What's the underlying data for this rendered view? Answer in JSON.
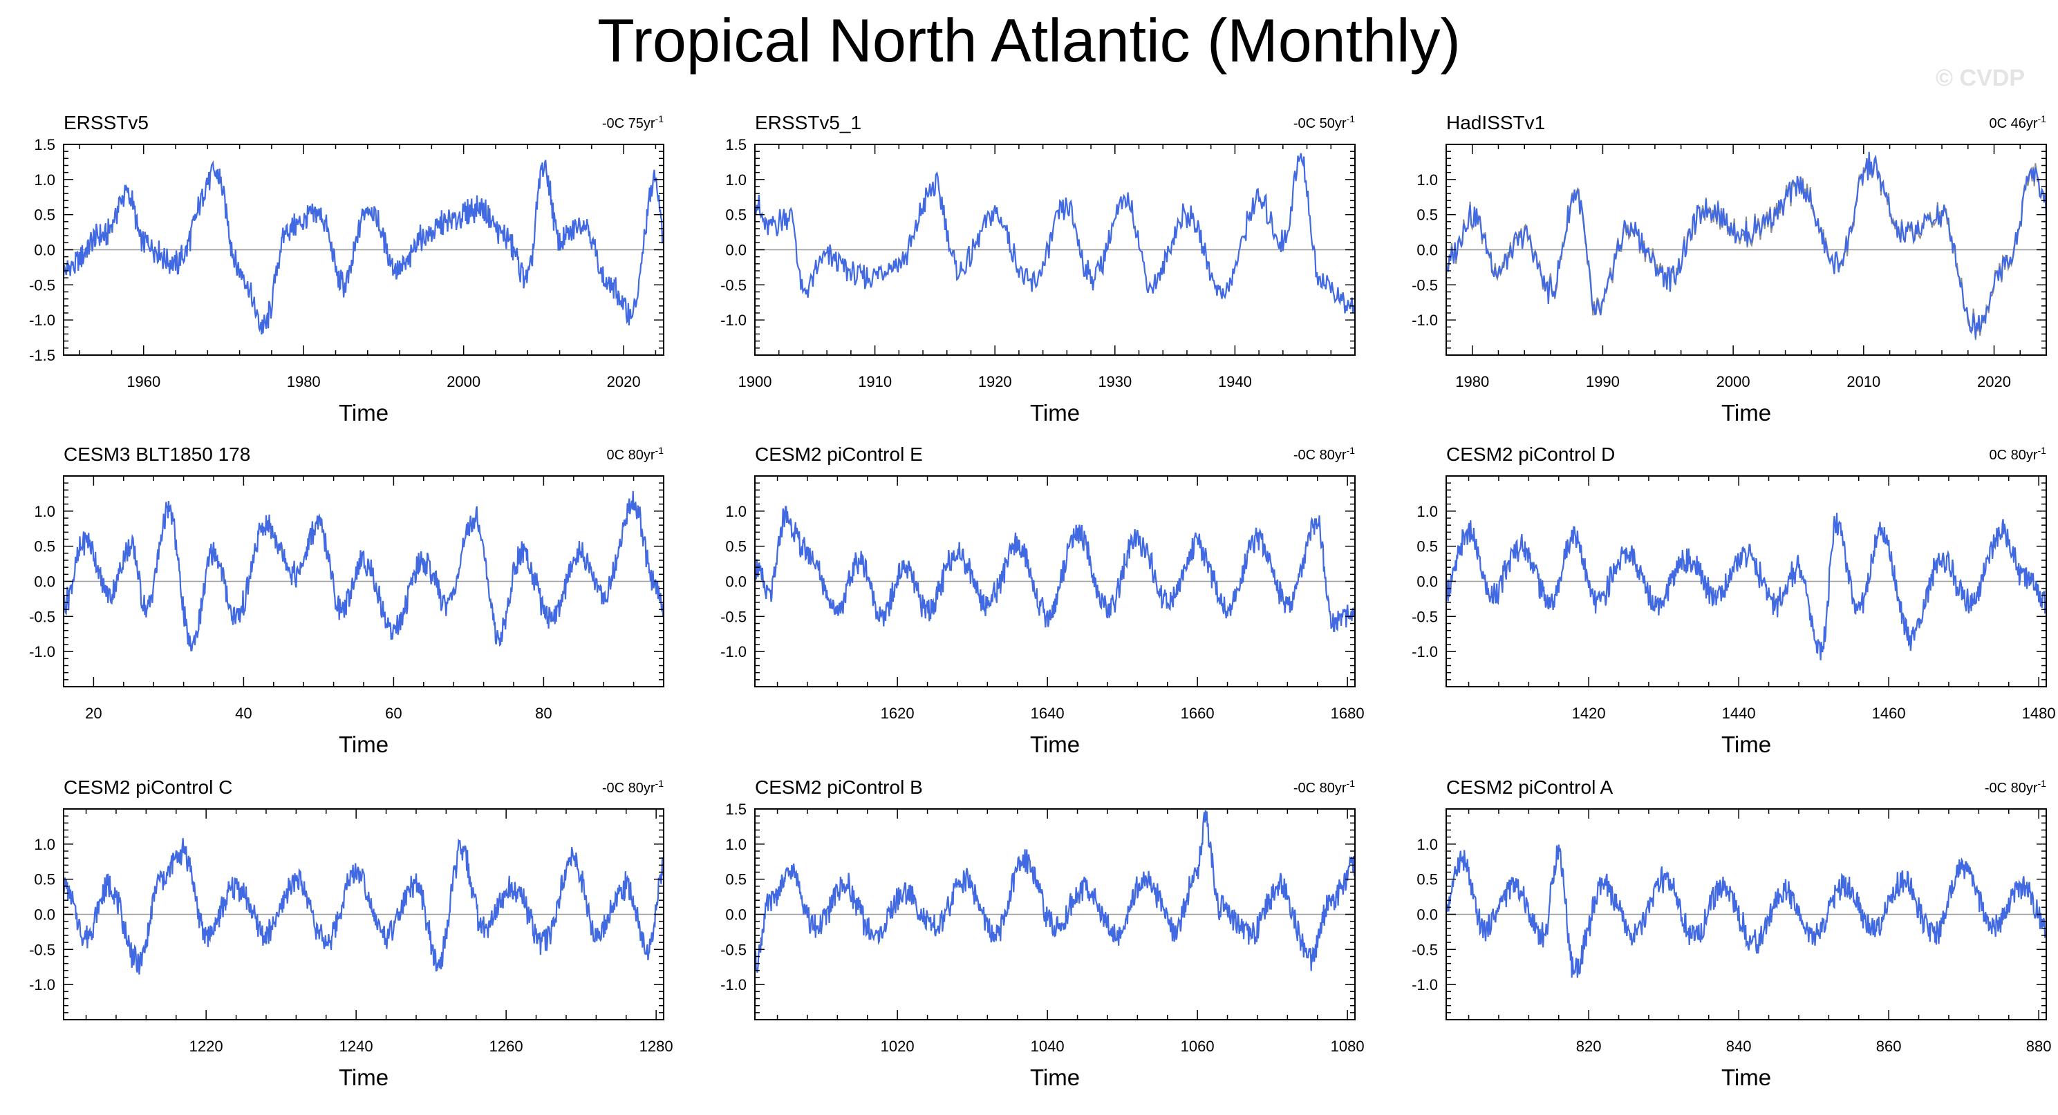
{
  "title": "Tropical North Atlantic (Monthly)",
  "watermark": "© CVDP",
  "colors": {
    "series": "#4169e1",
    "overlay": "#8c8c8c",
    "zero_line": "#9a9a9a"
  },
  "chart_data": [
    {
      "type": "line",
      "title": "ERSSTv5",
      "trend": "-0C 75yr",
      "trend_superscript": "-1",
      "xlabel": "Time",
      "xlim": [
        1950,
        2025
      ],
      "xticks": [
        1960,
        1980,
        2000,
        2020
      ],
      "ylim": [
        -1.5,
        1.5
      ],
      "yticks": [
        -1.5,
        -1.0,
        -0.5,
        0.0,
        0.5,
        1.0,
        1.5
      ],
      "x": [
        1950,
        1955,
        1958,
        1960,
        1964,
        1969,
        1972,
        1975,
        1978,
        1982,
        1985,
        1988,
        1992,
        1995,
        1998,
        2002,
        2005,
        2008,
        2010,
        2012,
        2015,
        2018,
        2021,
        2024,
        2025
      ],
      "y": [
        -0.3,
        0.2,
        0.8,
        0.1,
        -0.2,
        1.1,
        -0.3,
        -1.1,
        0.3,
        0.5,
        -0.5,
        0.6,
        -0.3,
        0.2,
        0.4,
        0.6,
        0.2,
        -0.4,
        1.2,
        0.1,
        0.4,
        -0.5,
        -0.9,
        1.0,
        0.2
      ]
    },
    {
      "type": "line",
      "title": "ERSSTv5_1",
      "trend": "-0C 50yr",
      "trend_superscript": "-1",
      "xlabel": "Time",
      "xlim": [
        1900,
        1950
      ],
      "xticks": [
        1900,
        1910,
        1920,
        1930,
        1940
      ],
      "ylim": [
        -1.5,
        1.5
      ],
      "yticks": [
        -1.0,
        -0.5,
        0.0,
        0.5,
        1.0,
        1.5
      ],
      "x": [
        1900,
        1901,
        1903,
        1904,
        1906,
        1909,
        1912,
        1915,
        1917,
        1920,
        1923,
        1926,
        1928,
        1931,
        1933,
        1936,
        1939,
        1942,
        1944,
        1945.5,
        1947,
        1949.5
      ],
      "y": [
        0.7,
        0.3,
        0.5,
        -0.6,
        -0.1,
        -0.4,
        -0.2,
        0.9,
        -0.3,
        0.5,
        -0.5,
        0.6,
        -0.4,
        0.7,
        -0.5,
        0.5,
        -0.6,
        0.7,
        0.1,
        1.3,
        -0.4,
        -0.8
      ]
    },
    {
      "type": "line",
      "title": "HadISSTv1",
      "trend": "0C 46yr",
      "trend_superscript": "-1",
      "xlabel": "Time",
      "xlim": [
        1978,
        2024
      ],
      "xticks": [
        1980,
        1990,
        2000,
        2010,
        2020
      ],
      "ylim": [
        -1.5,
        1.5
      ],
      "yticks": [
        -1.0,
        -0.5,
        0.0,
        0.5,
        1.0
      ],
      "x": [
        1978,
        1980,
        1982,
        1984,
        1986,
        1988,
        1989.5,
        1992,
        1995,
        1998,
        2001,
        2003,
        2005,
        2008,
        2010.5,
        2013,
        2016,
        2018.5,
        2021,
        2023,
        2024
      ],
      "y": [
        -0.2,
        0.5,
        -0.3,
        0.2,
        -0.6,
        0.8,
        -0.9,
        0.3,
        -0.4,
        0.6,
        0.2,
        0.5,
        0.9,
        -0.2,
        1.2,
        0.2,
        0.5,
        -1.1,
        -0.2,
        1.1,
        0.6
      ]
    },
    {
      "type": "line",
      "title": "CESM3 BLT1850 178",
      "trend": "0C 80yr",
      "trend_superscript": "-1",
      "xlabel": "Time",
      "xlim": [
        16,
        96
      ],
      "xticks": [
        20,
        40,
        60,
        80
      ],
      "ylim": [
        -1.5,
        1.5
      ],
      "yticks": [
        -1.0,
        -0.5,
        0.0,
        0.5,
        1.0
      ],
      "x": [
        16,
        19,
        22,
        25,
        27,
        30,
        33,
        36,
        39,
        43,
        47,
        50,
        53,
        56,
        60,
        64,
        67,
        71,
        74,
        77,
        81,
        85,
        88,
        92,
        95,
        96
      ],
      "y": [
        -0.3,
        0.6,
        -0.2,
        0.5,
        -0.4,
        1.0,
        -0.9,
        0.4,
        -0.5,
        0.8,
        0.1,
        0.8,
        -0.4,
        0.3,
        -0.7,
        0.3,
        -0.3,
        0.9,
        -0.8,
        0.4,
        -0.5,
        0.4,
        -0.2,
        1.1,
        -0.1,
        -0.4
      ]
    },
    {
      "type": "line",
      "title": "CESM2 piControl E",
      "trend": "-0C 80yr",
      "trend_superscript": "-1",
      "xlabel": "Time",
      "xlim": [
        1601,
        1681
      ],
      "xticks": [
        1620,
        1640,
        1660,
        1680
      ],
      "ylim": [
        -1.5,
        1.5
      ],
      "yticks": [
        -1.0,
        -0.5,
        0.0,
        0.5,
        1.0
      ],
      "x": [
        1601,
        1603,
        1605,
        1608,
        1612,
        1615,
        1618,
        1621,
        1624,
        1628,
        1632,
        1636,
        1640,
        1644,
        1648,
        1652,
        1656,
        1660,
        1664,
        1668,
        1672,
        1676,
        1678,
        1681
      ],
      "y": [
        0.2,
        -0.2,
        0.9,
        0.4,
        -0.4,
        0.3,
        -0.5,
        0.2,
        -0.4,
        0.4,
        -0.3,
        0.5,
        -0.5,
        0.7,
        -0.4,
        0.6,
        -0.3,
        0.5,
        -0.4,
        0.6,
        -0.3,
        0.8,
        -0.6,
        -0.4
      ]
    },
    {
      "type": "line",
      "title": "CESM2 piControl D",
      "trend": "0C 80yr",
      "trend_superscript": "-1",
      "xlabel": "Time",
      "xlim": [
        1401,
        1481
      ],
      "xticks": [
        1420,
        1440,
        1460,
        1480
      ],
      "ylim": [
        -1.5,
        1.5
      ],
      "yticks": [
        -1.0,
        -0.5,
        0.0,
        0.5,
        1.0
      ],
      "x": [
        1401,
        1404,
        1407,
        1411,
        1415,
        1418,
        1421,
        1425,
        1429,
        1433,
        1437,
        1441,
        1445,
        1448,
        1451,
        1453,
        1456,
        1459,
        1463,
        1467,
        1471,
        1475,
        1478,
        1481
      ],
      "y": [
        -0.1,
        0.7,
        -0.2,
        0.5,
        -0.3,
        0.7,
        -0.3,
        0.4,
        -0.3,
        0.3,
        -0.2,
        0.4,
        -0.3,
        0.2,
        -1.0,
        0.8,
        -0.4,
        0.7,
        -0.8,
        0.3,
        -0.3,
        0.7,
        0.1,
        -0.3
      ]
    },
    {
      "type": "line",
      "title": "CESM2 piControl C",
      "trend": "-0C 80yr",
      "trend_superscript": "-1",
      "xlabel": "Time",
      "xlim": [
        1201,
        1281
      ],
      "xticks": [
        1220,
        1240,
        1260,
        1280
      ],
      "ylim": [
        -1.5,
        1.5
      ],
      "yticks": [
        -1.0,
        -0.5,
        0.0,
        0.5,
        1.0
      ],
      "x": [
        1201,
        1204,
        1207,
        1211,
        1214,
        1217,
        1220,
        1224,
        1228,
        1232,
        1236,
        1240,
        1244,
        1248,
        1251,
        1254,
        1257,
        1261,
        1265,
        1269,
        1272,
        1276,
        1279,
        1281
      ],
      "y": [
        0.4,
        -0.3,
        0.4,
        -0.7,
        0.5,
        0.9,
        -0.3,
        0.4,
        -0.3,
        0.5,
        -0.4,
        0.6,
        -0.3,
        0.4,
        -0.7,
        0.9,
        -0.2,
        0.4,
        -0.4,
        0.8,
        -0.3,
        0.4,
        -0.5,
        0.7
      ]
    },
    {
      "type": "line",
      "title": "CESM2 piControl B",
      "trend": "-0C 80yr",
      "trend_superscript": "-1",
      "xlabel": "Time",
      "xlim": [
        1001,
        1081
      ],
      "xticks": [
        1020,
        1040,
        1060,
        1080
      ],
      "ylim": [
        -1.5,
        1.5
      ],
      "yticks": [
        -1.0,
        -0.5,
        0.0,
        0.5,
        1.0,
        1.5
      ],
      "x": [
        1001,
        1003,
        1006,
        1009,
        1013,
        1017,
        1021,
        1025,
        1029,
        1033,
        1037,
        1041,
        1045,
        1049,
        1053,
        1057,
        1060,
        1061,
        1063,
        1067,
        1071,
        1075,
        1078,
        1081
      ],
      "y": [
        -0.7,
        0.2,
        0.6,
        -0.2,
        0.4,
        -0.3,
        0.3,
        -0.2,
        0.5,
        -0.3,
        0.8,
        -0.2,
        0.4,
        -0.3,
        0.5,
        -0.2,
        0.6,
        1.35,
        0.1,
        -0.3,
        0.4,
        -0.6,
        0.2,
        0.7
      ]
    },
    {
      "type": "line",
      "title": "CESM2 piControl A",
      "trend": "-0C 80yr",
      "trend_superscript": "-1",
      "xlabel": "Time",
      "xlim": [
        801,
        881
      ],
      "xticks": [
        820,
        840,
        860,
        880
      ],
      "ylim": [
        -1.5,
        1.5
      ],
      "yticks": [
        -1.0,
        -0.5,
        0.0,
        0.5,
        1.0
      ],
      "x": [
        801,
        803,
        806,
        810,
        814,
        816,
        818,
        822,
        826,
        830,
        834,
        838,
        842,
        846,
        850,
        854,
        858,
        862,
        866,
        870,
        874,
        878,
        881
      ],
      "y": [
        0.1,
        0.8,
        -0.2,
        0.4,
        -0.3,
        0.9,
        -0.8,
        0.4,
        -0.3,
        0.5,
        -0.3,
        0.4,
        -0.4,
        0.3,
        -0.3,
        0.4,
        -0.2,
        0.5,
        -0.3,
        0.7,
        -0.2,
        0.4,
        -0.2
      ]
    }
  ]
}
